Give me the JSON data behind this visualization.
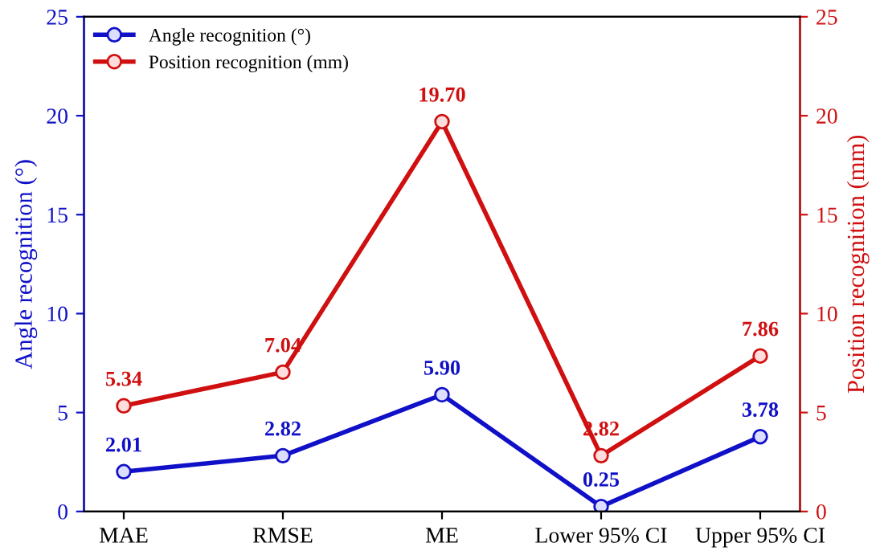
{
  "chart_data": {
    "type": "line",
    "ylabel": "Angle recognition (°)",
    "y2label": "Position recognition (mm)",
    "categories": [
      "MAE",
      "RMSE",
      "ME",
      "Lower 95% CI",
      "Upper 95% CI"
    ],
    "series": [
      {
        "name": "Angle recognition (°)",
        "color": "#1010c8",
        "values": [
          2.01,
          2.82,
          5.9,
          0.25,
          3.78
        ],
        "value_labels": [
          "2.01",
          "2.82",
          "5.90",
          "0.25",
          "3.78"
        ]
      },
      {
        "name": "Position recognition (mm)",
        "color": "#d01010",
        "axis": "y2",
        "values": [
          5.34,
          7.04,
          19.7,
          2.82,
          7.86
        ],
        "value_labels": [
          "5.34",
          "7.04",
          "19.70",
          "2.82",
          "7.86"
        ]
      }
    ],
    "ylim": [
      0,
      25
    ],
    "yticks": [
      0,
      5,
      10,
      15,
      20,
      25
    ],
    "y2lim": [
      0,
      25
    ],
    "y2ticks": [
      0,
      5,
      10,
      15,
      20,
      25
    ],
    "legend": "top left",
    "marker": "circle",
    "line_style": "solid",
    "grid": false
  }
}
